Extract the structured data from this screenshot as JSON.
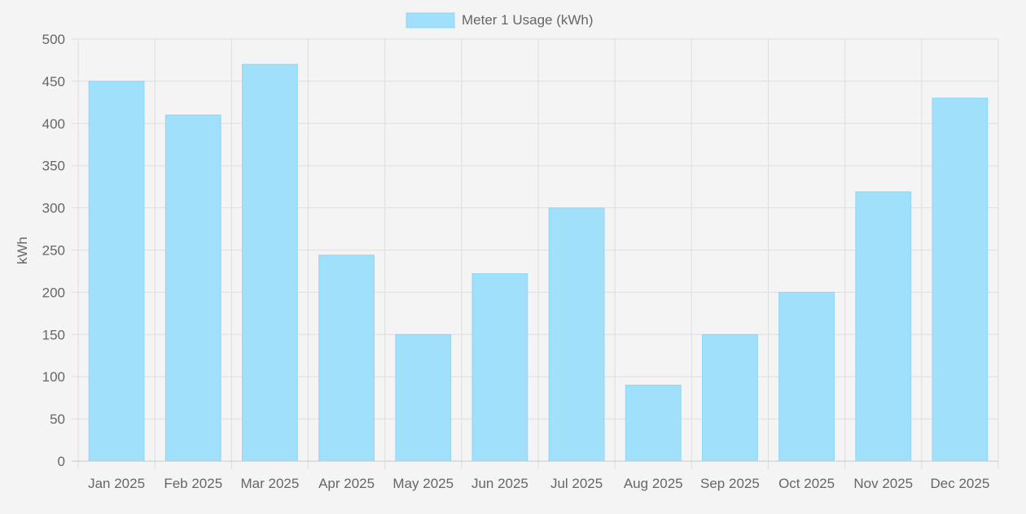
{
  "colors": {
    "background": "#f4f4f4",
    "bar_fill": "#a0e0fb",
    "bar_stroke": "#8fd6f5",
    "grid": "#dedede",
    "axis_text": "#666666"
  },
  "chart_data": {
    "type": "bar",
    "title": "",
    "legend": {
      "position": "top-center"
    },
    "xlabel": "",
    "ylabel": "kWh",
    "ylim": [
      0,
      500
    ],
    "yticks": [
      0,
      50,
      100,
      150,
      200,
      250,
      300,
      350,
      400,
      450,
      500
    ],
    "grid": true,
    "categories": [
      "Jan 2025",
      "Feb 2025",
      "Mar 2025",
      "Apr 2025",
      "May 2025",
      "Jun 2025",
      "Jul 2025",
      "Aug 2025",
      "Sep 2025",
      "Oct 2025",
      "Nov 2025",
      "Dec 2025"
    ],
    "series": [
      {
        "name": "Meter 1 Usage (kWh)",
        "values": [
          450,
          410,
          470,
          244,
          150,
          222,
          300,
          90,
          150,
          200,
          319,
          430
        ]
      }
    ]
  }
}
